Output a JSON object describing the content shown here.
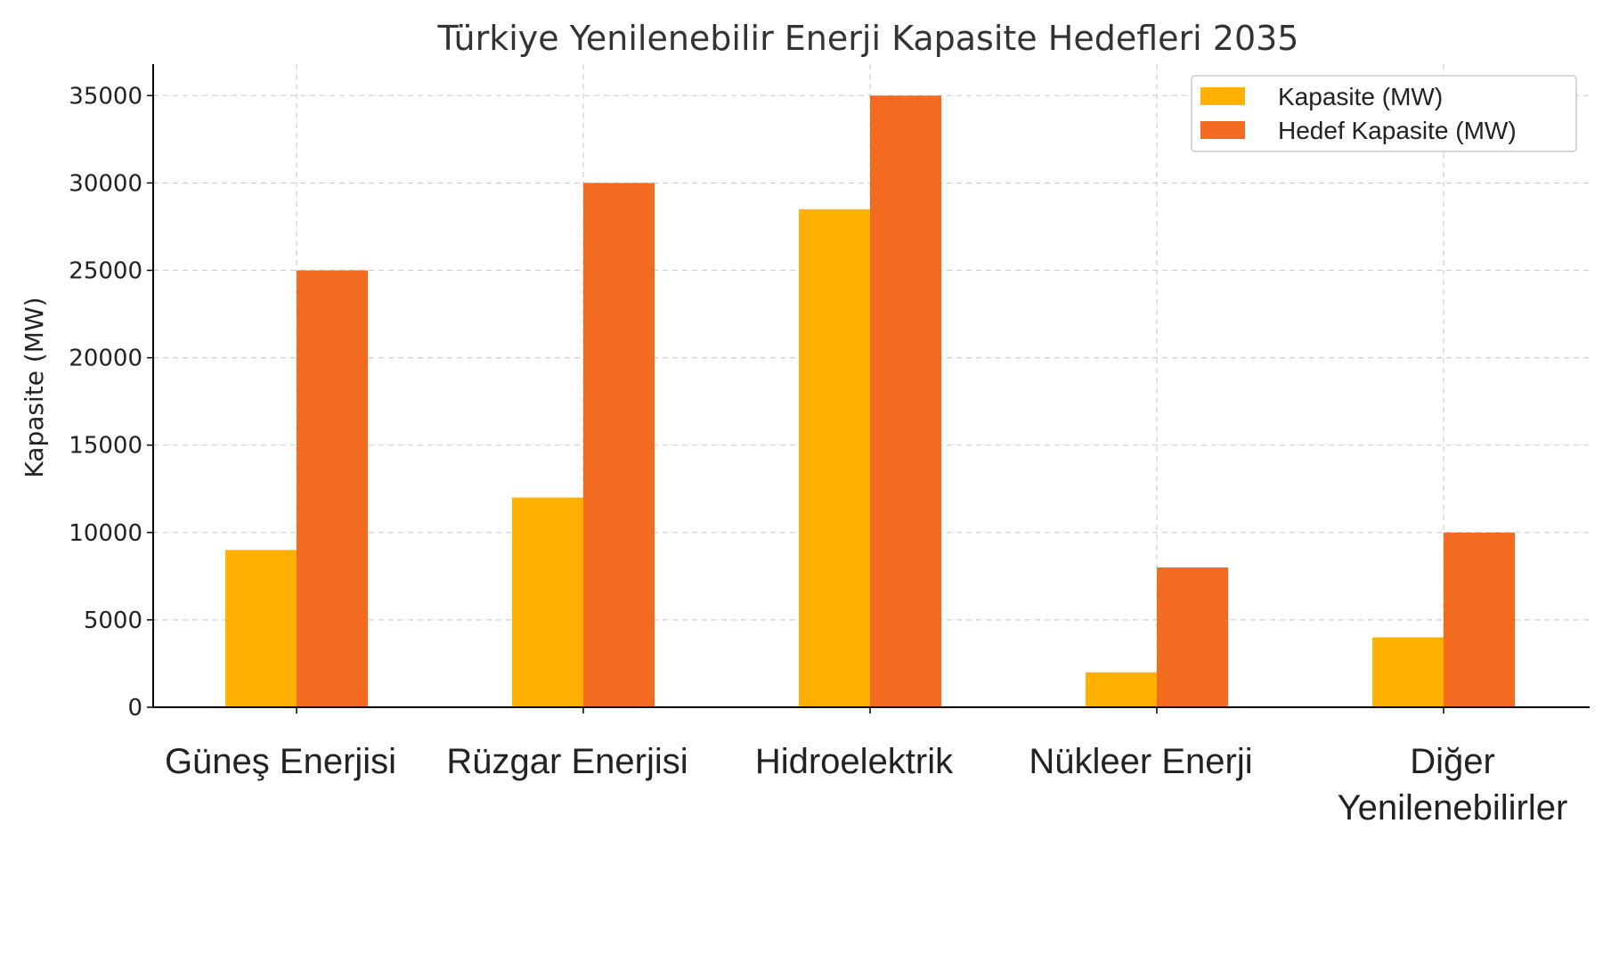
{
  "chart_data": {
    "type": "bar",
    "title": "Türkiye Yenilenebilir Enerji Kapasite Hedefleri 2035",
    "xlabel": "",
    "ylabel": "Kapasite (MW)",
    "ylim": [
      0,
      36800
    ],
    "yticks": [
      0,
      5000,
      10000,
      15000,
      20000,
      25000,
      30000,
      35000
    ],
    "grid": true,
    "legend_position": "top-right",
    "categories": [
      [
        "Güneş Enerjisi"
      ],
      [
        "Rüzgar Enerjisi"
      ],
      [
        "Hidroelektrik"
      ],
      [
        "Nükleer Enerji"
      ],
      [
        "Diğer",
        "Yenilenebilirler"
      ]
    ],
    "series": [
      {
        "name": "Kapasite (MW)",
        "color": "#FFB000",
        "values": [
          9000,
          12000,
          28500,
          2000,
          4000
        ]
      },
      {
        "name": "Hedef Kapasite (MW)",
        "color": "#F26B21",
        "values": [
          25000,
          30000,
          35000,
          8000,
          10000
        ]
      }
    ]
  }
}
